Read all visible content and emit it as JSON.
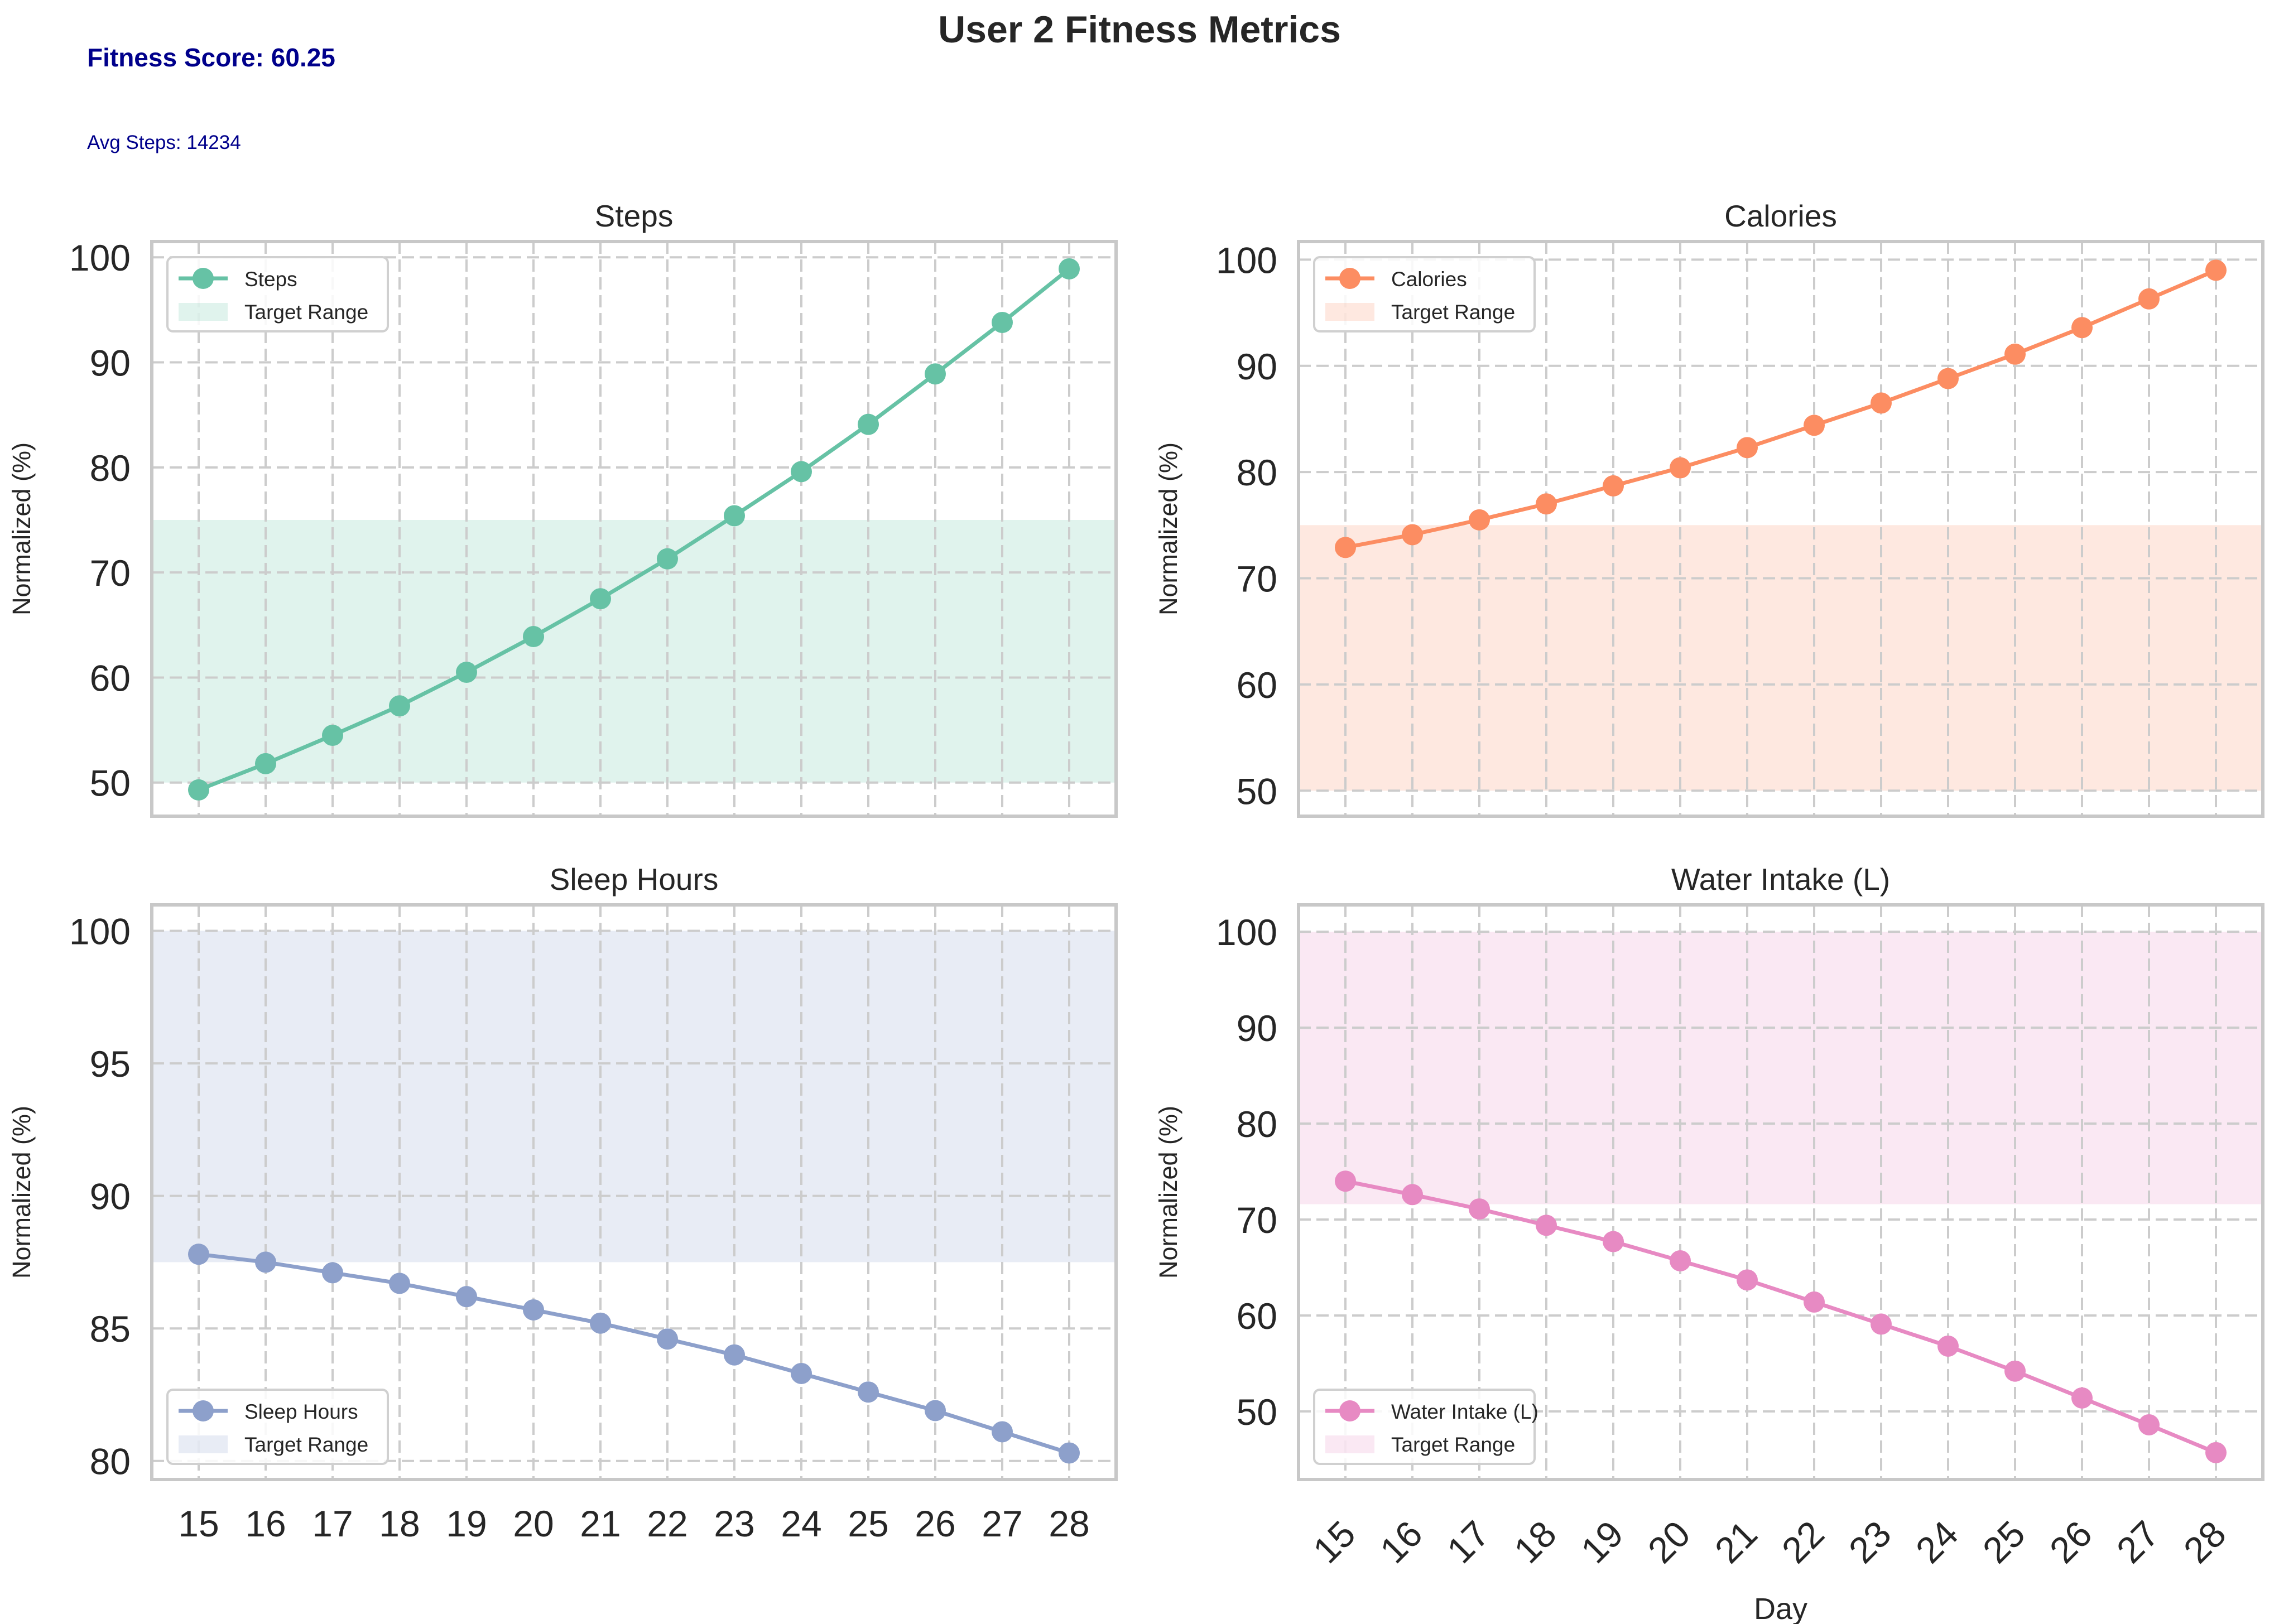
{
  "title": "User 2 Fitness Metrics",
  "fitness_score_text": "Fitness Score: 60.25",
  "avg_steps_text": "Avg Steps: 14234",
  "colors": {
    "steps": "#66c2a5",
    "calories": "#fc8d62",
    "sleep": "#8da0cb",
    "water": "#e78ac3",
    "grid": "#cccccc",
    "frame": "#c8c8c8",
    "note": "#00008b"
  },
  "chart_data": [
    {
      "type": "line",
      "title": "Steps",
      "xlabel": "",
      "ylabel": "Normalized (%)",
      "x": [
        15,
        16,
        17,
        18,
        19,
        20,
        21,
        22,
        23,
        24,
        25,
        26,
        27,
        28
      ],
      "series": [
        {
          "name": "Steps",
          "values": [
            49.3,
            51.8,
            54.5,
            57.3,
            60.5,
            63.9,
            67.5,
            71.3,
            75.4,
            79.6,
            84.1,
            88.9,
            93.8,
            98.9
          ],
          "color": "#66c2a5"
        }
      ],
      "target_range": {
        "name": "Target Range",
        "low": 50,
        "high": 75
      },
      "ylim": [
        46.8,
        101.5
      ],
      "yticks": [
        50,
        60,
        70,
        80,
        90,
        100
      ],
      "xtick_labels_shown": false,
      "legend": "top-left",
      "grid": true
    },
    {
      "type": "line",
      "title": "Calories",
      "xlabel": "",
      "ylabel": "Normalized (%)",
      "x": [
        15,
        16,
        17,
        18,
        19,
        20,
        21,
        22,
        23,
        24,
        25,
        26,
        27,
        28
      ],
      "series": [
        {
          "name": "Calories",
          "values": [
            72.9,
            74.1,
            75.5,
            77.0,
            78.7,
            80.4,
            82.3,
            84.4,
            86.5,
            88.8,
            91.1,
            93.6,
            96.3,
            99.0
          ],
          "color": "#fc8d62"
        }
      ],
      "target_range": {
        "name": "Target Range",
        "low": 50,
        "high": 75
      },
      "ylim": [
        47.6,
        101.7
      ],
      "yticks": [
        50,
        60,
        70,
        80,
        90,
        100
      ],
      "xtick_labels_shown": false,
      "legend": "top-left",
      "grid": true
    },
    {
      "type": "line",
      "title": "Sleep Hours",
      "xlabel": "",
      "ylabel": "Normalized (%)",
      "x": [
        15,
        16,
        17,
        18,
        19,
        20,
        21,
        22,
        23,
        24,
        25,
        26,
        27,
        28
      ],
      "series": [
        {
          "name": "Sleep Hours",
          "values": [
            87.8,
            87.5,
            87.1,
            86.7,
            86.2,
            85.7,
            85.2,
            84.6,
            84.0,
            83.3,
            82.6,
            81.9,
            81.1,
            80.3
          ],
          "color": "#8da0cb"
        }
      ],
      "target_range": {
        "name": "Target Range",
        "low": 87.5,
        "high": 100
      },
      "ylim": [
        79.3,
        100.98
      ],
      "yticks": [
        80,
        85,
        90,
        95,
        100
      ],
      "xtick_labels_shown": true,
      "xtick_rotation": 0,
      "legend": "bottom-left",
      "grid": true
    },
    {
      "type": "line",
      "title": "Water Intake (L)",
      "xlabel": "Day",
      "ylabel": "Normalized (%)",
      "x": [
        15,
        16,
        17,
        18,
        19,
        20,
        21,
        22,
        23,
        24,
        25,
        26,
        27,
        28
      ],
      "series": [
        {
          "name": "Water Intake (L)",
          "values": [
            74.0,
            72.6,
            71.1,
            69.4,
            67.7,
            65.7,
            63.7,
            61.4,
            59.1,
            56.8,
            54.2,
            51.4,
            48.6,
            45.7
          ],
          "color": "#e78ac3"
        }
      ],
      "target_range": {
        "name": "Target Range",
        "low": 71.6,
        "high": 100
      },
      "ylim": [
        42.9,
        102.8
      ],
      "yticks": [
        50,
        60,
        70,
        80,
        90,
        100
      ],
      "xtick_labels_shown": true,
      "xtick_rotation": -45,
      "legend": "bottom-left",
      "grid": true
    }
  ]
}
